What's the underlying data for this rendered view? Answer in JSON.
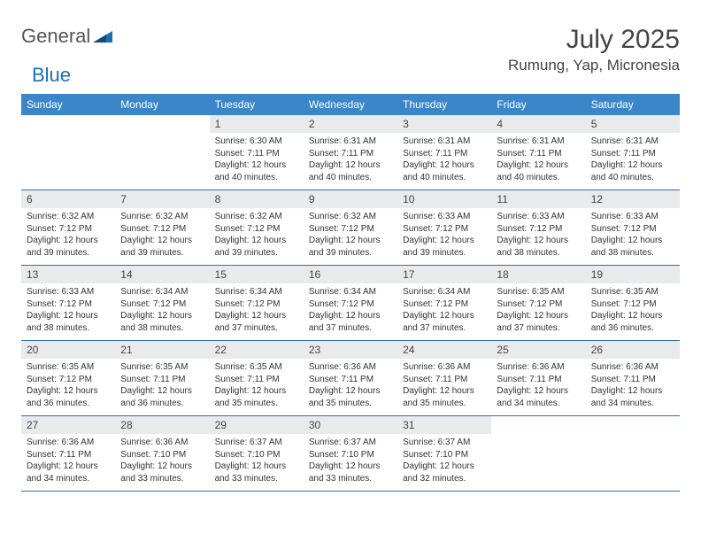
{
  "brand": {
    "name1": "General",
    "name2": "Blue"
  },
  "title": "July 2025",
  "location": "Rumung, Yap, Micronesia",
  "colors": {
    "header_bg": "#3a86c8",
    "header_text": "#ffffff",
    "daynum_bg": "#e9eaeb",
    "week_border": "#2f6fa8",
    "text": "#333333",
    "logo_gray": "#555555",
    "logo_blue": "#1a6fb5",
    "background": "#ffffff"
  },
  "weekdays": [
    "Sunday",
    "Monday",
    "Tuesday",
    "Wednesday",
    "Thursday",
    "Friday",
    "Saturday"
  ],
  "weeks": [
    [
      {
        "empty": true
      },
      {
        "empty": true
      },
      {
        "day": "1",
        "sunrise": "Sunrise: 6:30 AM",
        "sunset": "Sunset: 7:11 PM",
        "daylight": "Daylight: 12 hours and 40 minutes."
      },
      {
        "day": "2",
        "sunrise": "Sunrise: 6:31 AM",
        "sunset": "Sunset: 7:11 PM",
        "daylight": "Daylight: 12 hours and 40 minutes."
      },
      {
        "day": "3",
        "sunrise": "Sunrise: 6:31 AM",
        "sunset": "Sunset: 7:11 PM",
        "daylight": "Daylight: 12 hours and 40 minutes."
      },
      {
        "day": "4",
        "sunrise": "Sunrise: 6:31 AM",
        "sunset": "Sunset: 7:11 PM",
        "daylight": "Daylight: 12 hours and 40 minutes."
      },
      {
        "day": "5",
        "sunrise": "Sunrise: 6:31 AM",
        "sunset": "Sunset: 7:11 PM",
        "daylight": "Daylight: 12 hours and 40 minutes."
      }
    ],
    [
      {
        "day": "6",
        "sunrise": "Sunrise: 6:32 AM",
        "sunset": "Sunset: 7:12 PM",
        "daylight": "Daylight: 12 hours and 39 minutes."
      },
      {
        "day": "7",
        "sunrise": "Sunrise: 6:32 AM",
        "sunset": "Sunset: 7:12 PM",
        "daylight": "Daylight: 12 hours and 39 minutes."
      },
      {
        "day": "8",
        "sunrise": "Sunrise: 6:32 AM",
        "sunset": "Sunset: 7:12 PM",
        "daylight": "Daylight: 12 hours and 39 minutes."
      },
      {
        "day": "9",
        "sunrise": "Sunrise: 6:32 AM",
        "sunset": "Sunset: 7:12 PM",
        "daylight": "Daylight: 12 hours and 39 minutes."
      },
      {
        "day": "10",
        "sunrise": "Sunrise: 6:33 AM",
        "sunset": "Sunset: 7:12 PM",
        "daylight": "Daylight: 12 hours and 39 minutes."
      },
      {
        "day": "11",
        "sunrise": "Sunrise: 6:33 AM",
        "sunset": "Sunset: 7:12 PM",
        "daylight": "Daylight: 12 hours and 38 minutes."
      },
      {
        "day": "12",
        "sunrise": "Sunrise: 6:33 AM",
        "sunset": "Sunset: 7:12 PM",
        "daylight": "Daylight: 12 hours and 38 minutes."
      }
    ],
    [
      {
        "day": "13",
        "sunrise": "Sunrise: 6:33 AM",
        "sunset": "Sunset: 7:12 PM",
        "daylight": "Daylight: 12 hours and 38 minutes."
      },
      {
        "day": "14",
        "sunrise": "Sunrise: 6:34 AM",
        "sunset": "Sunset: 7:12 PM",
        "daylight": "Daylight: 12 hours and 38 minutes."
      },
      {
        "day": "15",
        "sunrise": "Sunrise: 6:34 AM",
        "sunset": "Sunset: 7:12 PM",
        "daylight": "Daylight: 12 hours and 37 minutes."
      },
      {
        "day": "16",
        "sunrise": "Sunrise: 6:34 AM",
        "sunset": "Sunset: 7:12 PM",
        "daylight": "Daylight: 12 hours and 37 minutes."
      },
      {
        "day": "17",
        "sunrise": "Sunrise: 6:34 AM",
        "sunset": "Sunset: 7:12 PM",
        "daylight": "Daylight: 12 hours and 37 minutes."
      },
      {
        "day": "18",
        "sunrise": "Sunrise: 6:35 AM",
        "sunset": "Sunset: 7:12 PM",
        "daylight": "Daylight: 12 hours and 37 minutes."
      },
      {
        "day": "19",
        "sunrise": "Sunrise: 6:35 AM",
        "sunset": "Sunset: 7:12 PM",
        "daylight": "Daylight: 12 hours and 36 minutes."
      }
    ],
    [
      {
        "day": "20",
        "sunrise": "Sunrise: 6:35 AM",
        "sunset": "Sunset: 7:12 PM",
        "daylight": "Daylight: 12 hours and 36 minutes."
      },
      {
        "day": "21",
        "sunrise": "Sunrise: 6:35 AM",
        "sunset": "Sunset: 7:11 PM",
        "daylight": "Daylight: 12 hours and 36 minutes."
      },
      {
        "day": "22",
        "sunrise": "Sunrise: 6:35 AM",
        "sunset": "Sunset: 7:11 PM",
        "daylight": "Daylight: 12 hours and 35 minutes."
      },
      {
        "day": "23",
        "sunrise": "Sunrise: 6:36 AM",
        "sunset": "Sunset: 7:11 PM",
        "daylight": "Daylight: 12 hours and 35 minutes."
      },
      {
        "day": "24",
        "sunrise": "Sunrise: 6:36 AM",
        "sunset": "Sunset: 7:11 PM",
        "daylight": "Daylight: 12 hours and 35 minutes."
      },
      {
        "day": "25",
        "sunrise": "Sunrise: 6:36 AM",
        "sunset": "Sunset: 7:11 PM",
        "daylight": "Daylight: 12 hours and 34 minutes."
      },
      {
        "day": "26",
        "sunrise": "Sunrise: 6:36 AM",
        "sunset": "Sunset: 7:11 PM",
        "daylight": "Daylight: 12 hours and 34 minutes."
      }
    ],
    [
      {
        "day": "27",
        "sunrise": "Sunrise: 6:36 AM",
        "sunset": "Sunset: 7:11 PM",
        "daylight": "Daylight: 12 hours and 34 minutes."
      },
      {
        "day": "28",
        "sunrise": "Sunrise: 6:36 AM",
        "sunset": "Sunset: 7:10 PM",
        "daylight": "Daylight: 12 hours and 33 minutes."
      },
      {
        "day": "29",
        "sunrise": "Sunrise: 6:37 AM",
        "sunset": "Sunset: 7:10 PM",
        "daylight": "Daylight: 12 hours and 33 minutes."
      },
      {
        "day": "30",
        "sunrise": "Sunrise: 6:37 AM",
        "sunset": "Sunset: 7:10 PM",
        "daylight": "Daylight: 12 hours and 33 minutes."
      },
      {
        "day": "31",
        "sunrise": "Sunrise: 6:37 AM",
        "sunset": "Sunset: 7:10 PM",
        "daylight": "Daylight: 12 hours and 32 minutes."
      },
      {
        "empty": true
      },
      {
        "empty": true
      }
    ]
  ]
}
